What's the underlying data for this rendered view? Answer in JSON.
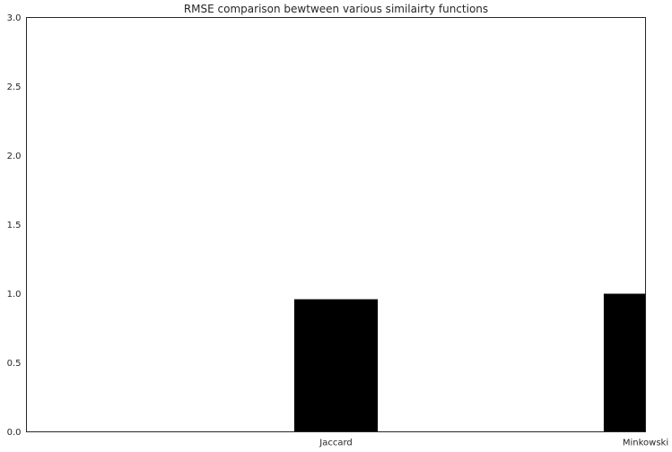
{
  "chart_data": {
    "type": "bar",
    "title": "RMSE comparison bewtween various similairty functions",
    "xlabel": "",
    "ylabel": "",
    "categories": [
      "Jaccard",
      "Minkowski"
    ],
    "values": [
      0.96,
      1.0
    ],
    "ylim": [
      0,
      3.0
    ],
    "yticks": [
      "0.0",
      "0.5",
      "1.0",
      "1.5",
      "2.0",
      "2.5",
      "3.0"
    ],
    "grid": false,
    "legend": "none",
    "bar_color": "#000000"
  }
}
